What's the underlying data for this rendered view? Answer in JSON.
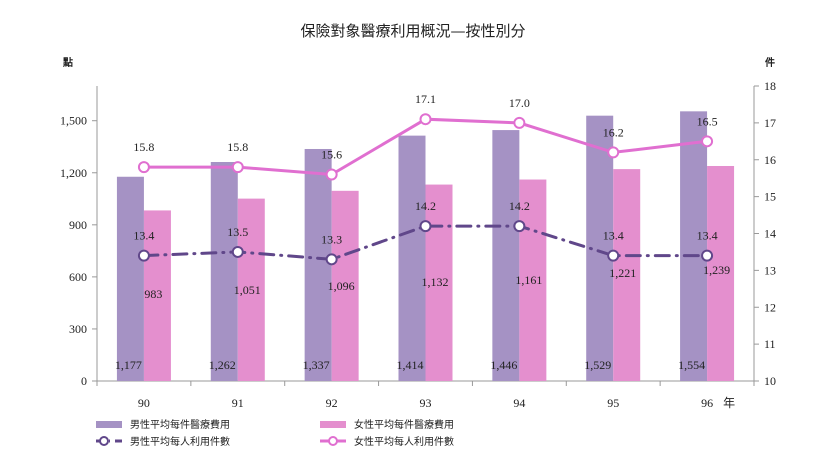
{
  "colors": {
    "male_bar": "#a592c4",
    "female_bar": "#e48fce",
    "male_line": "#60478a",
    "female_line": "#e06fd0",
    "axis": "#999999"
  },
  "chart_data": {
    "type": "bar",
    "title": "保險對象醫療利用概況—按性別分",
    "categories": [
      "90",
      "91",
      "92",
      "93",
      "94",
      "95",
      "96"
    ],
    "x_suffix": "年",
    "y_left_unit": "點",
    "y_right_unit": "件",
    "y_left_lim": [
      0,
      1700
    ],
    "y_left_ticks": [
      "0",
      "300",
      "600",
      "900",
      "1,200",
      "1,500"
    ],
    "y_left_tick_values": [
      0,
      300,
      600,
      900,
      1200,
      1500
    ],
    "y_right_lim": [
      10,
      18
    ],
    "y_right_ticks": [
      "10",
      "11",
      "12",
      "13",
      "14",
      "15",
      "16",
      "17",
      "18"
    ],
    "y_right_tick_values": [
      10,
      11,
      12,
      13,
      14,
      15,
      16,
      17,
      18
    ],
    "legend_position": "bottom-left",
    "grid": false,
    "series": [
      {
        "name": "男性平均每件醫療費用",
        "type": "bar",
        "axis": "left",
        "values": [
          1177,
          1262,
          1337,
          1414,
          1446,
          1529,
          1554
        ],
        "labels": [
          "1,177",
          "1,262",
          "1,337",
          "1,414",
          "1,446",
          "1,529",
          "1,554"
        ]
      },
      {
        "name": "女性平均每件醫療費用",
        "type": "bar",
        "axis": "left",
        "values": [
          983,
          1051,
          1096,
          1132,
          1161,
          1221,
          1239
        ],
        "labels": [
          "983",
          "1,051",
          "1,096",
          "1,132",
          "1,161",
          "1,221",
          "1,239"
        ]
      },
      {
        "name": "男性平均每人利用件數",
        "type": "line",
        "style": "dash-dot",
        "axis": "right",
        "values": [
          13.4,
          13.5,
          13.3,
          14.2,
          14.2,
          13.4,
          13.4
        ],
        "labels": [
          "13.4",
          "13.5",
          "13.3",
          "14.2",
          "14.2",
          "13.4",
          "13.4"
        ]
      },
      {
        "name": "女性平均每人利用件數",
        "type": "line",
        "style": "solid",
        "axis": "right",
        "values": [
          15.8,
          15.8,
          15.6,
          17.1,
          17.0,
          16.2,
          16.5
        ],
        "labels": [
          "15.8",
          "15.8",
          "15.6",
          "17.1",
          "17.0",
          "16.2",
          "16.5"
        ]
      }
    ]
  }
}
